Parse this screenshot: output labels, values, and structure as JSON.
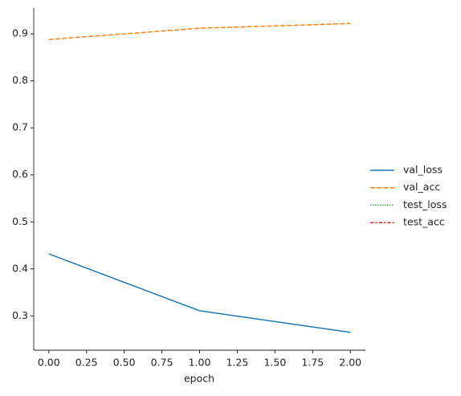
{
  "chart_data": {
    "type": "line",
    "x": [
      0,
      1,
      2
    ],
    "xlabel": "epoch",
    "series": [
      {
        "name": "val_loss",
        "color": "#1f77b4",
        "linestyle": "solid",
        "values": [
          0.432,
          0.311,
          0.265
        ]
      },
      {
        "name": "val_acc",
        "color": "#ff7f0e",
        "linestyle": "dashed",
        "values": [
          0.888,
          0.912,
          0.922
        ]
      },
      {
        "name": "test_loss",
        "color": "#2ca02c",
        "linestyle": "dotted",
        "values": [
          null,
          null,
          null
        ]
      },
      {
        "name": "test_acc",
        "color": "#d62728",
        "linestyle": "dashdot",
        "values": [
          null,
          null,
          null
        ]
      }
    ],
    "xlim": [
      -0.1,
      2.1
    ],
    "xticks": [
      {
        "value": 0,
        "label": "0.00"
      },
      {
        "value": 0.25,
        "label": "0.25"
      },
      {
        "value": 0.5,
        "label": "0.50"
      },
      {
        "value": 0.75,
        "label": "0.75"
      },
      {
        "value": 1,
        "label": "1.00"
      },
      {
        "value": 1.25,
        "label": "1.25"
      },
      {
        "value": 1.5,
        "label": "1.50"
      },
      {
        "value": 1.75,
        "label": "1.75"
      },
      {
        "value": 2,
        "label": "2.00"
      }
    ],
    "ylim": [
      0.227,
      0.955
    ],
    "yticks": [
      0.3,
      0.4,
      0.5,
      0.6,
      0.7,
      0.8,
      0.9
    ],
    "grid": false,
    "legend": "right"
  }
}
